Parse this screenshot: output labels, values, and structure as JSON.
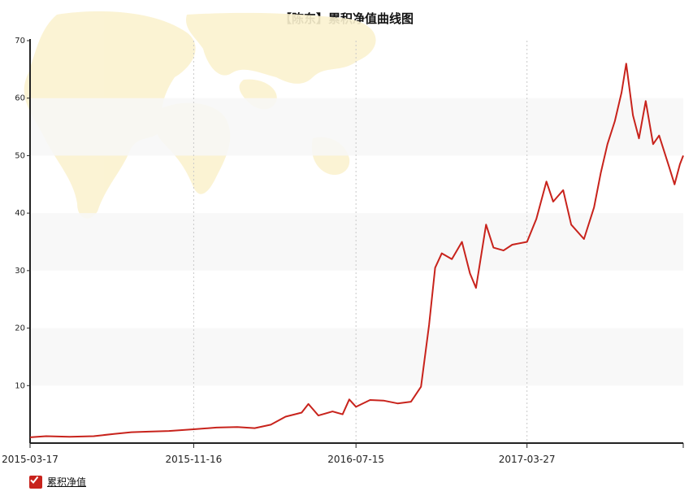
{
  "chart_data": {
    "type": "line",
    "title": "【陈东】累积净值曲线图",
    "xlabel": "",
    "ylabel": "",
    "ylim": [
      0,
      70
    ],
    "yticks": [
      10,
      20,
      30,
      40,
      50,
      60,
      70
    ],
    "xticks": [
      "2015-03-17",
      "2015-11-16",
      "2016-07-15",
      "2017-03-27"
    ],
    "xlim": [
      "2015-03-17",
      "2017-11-15"
    ],
    "grid": "horizontal alternating bands, vertical dotted lines at x ticks",
    "legend_position": "bottom-left",
    "series": [
      {
        "name": "累积净值",
        "color": "#c8231c",
        "points": [
          [
            "2015-03-17",
            1.0
          ],
          [
            "2015-04-10",
            1.2
          ],
          [
            "2015-05-15",
            1.1
          ],
          [
            "2015-06-20",
            1.2
          ],
          [
            "2015-07-20",
            1.6
          ],
          [
            "2015-08-15",
            1.9
          ],
          [
            "2015-09-10",
            2.0
          ],
          [
            "2015-10-10",
            2.1
          ],
          [
            "2015-11-16",
            2.4
          ],
          [
            "2015-12-20",
            2.7
          ],
          [
            "2016-01-20",
            2.8
          ],
          [
            "2016-02-15",
            2.6
          ],
          [
            "2016-03-10",
            3.2
          ],
          [
            "2016-04-01",
            4.6
          ],
          [
            "2016-04-25",
            5.3
          ],
          [
            "2016-05-05",
            6.8
          ],
          [
            "2016-05-20",
            4.8
          ],
          [
            "2016-06-10",
            5.5
          ],
          [
            "2016-06-25",
            5.0
          ],
          [
            "2016-07-05",
            7.6
          ],
          [
            "2016-07-15",
            6.3
          ],
          [
            "2016-08-05",
            7.5
          ],
          [
            "2016-08-25",
            7.4
          ],
          [
            "2016-09-15",
            6.9
          ],
          [
            "2016-10-05",
            7.2
          ],
          [
            "2016-10-20",
            9.8
          ],
          [
            "2016-11-01",
            20.5
          ],
          [
            "2016-11-10",
            30.5
          ],
          [
            "2016-11-20",
            33.0
          ],
          [
            "2016-12-05",
            32.0
          ],
          [
            "2016-12-20",
            35.0
          ],
          [
            "2017-01-01",
            29.5
          ],
          [
            "2017-01-10",
            27.0
          ],
          [
            "2017-01-25",
            38.0
          ],
          [
            "2017-02-05",
            34.0
          ],
          [
            "2017-02-20",
            33.5
          ],
          [
            "2017-03-05",
            34.5
          ],
          [
            "2017-03-27",
            35.0
          ],
          [
            "2017-04-10",
            39.0
          ],
          [
            "2017-04-25",
            45.5
          ],
          [
            "2017-05-05",
            42.0
          ],
          [
            "2017-05-20",
            44.0
          ],
          [
            "2017-06-01",
            38.0
          ],
          [
            "2017-06-20",
            35.5
          ],
          [
            "2017-07-05",
            41.0
          ],
          [
            "2017-07-15",
            47.0
          ],
          [
            "2017-07-25",
            52.0
          ],
          [
            "2017-08-05",
            56.0
          ],
          [
            "2017-08-15",
            61.0
          ],
          [
            "2017-08-22",
            66.0
          ],
          [
            "2017-09-01",
            57.0
          ],
          [
            "2017-09-10",
            53.0
          ],
          [
            "2017-09-20",
            59.5
          ],
          [
            "2017-10-01",
            52.0
          ],
          [
            "2017-10-10",
            53.5
          ],
          [
            "2017-10-25",
            48.0
          ],
          [
            "2017-11-02",
            45.0
          ],
          [
            "2017-11-10",
            48.5
          ],
          [
            "2017-11-15",
            50.0
          ]
        ]
      }
    ]
  },
  "legend": {
    "label": "累积净值"
  }
}
